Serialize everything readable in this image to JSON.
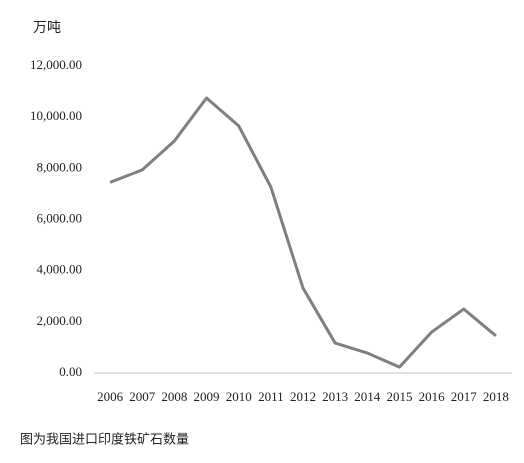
{
  "chart_data": {
    "type": "line",
    "y_unit_label": "万吨",
    "caption": "图为我国进口印度铁矿石数量",
    "categories": [
      "2006",
      "2007",
      "2008",
      "2009",
      "2010",
      "2011",
      "2012",
      "2013",
      "2014",
      "2015",
      "2016",
      "2017",
      "2018"
    ],
    "values": [
      7450,
      7940,
      9070,
      10750,
      9660,
      7270,
      3320,
      1170,
      780,
      230,
      1600,
      2500,
      1450
    ],
    "color": "#7f7f7f",
    "ylim": [
      0,
      12000
    ],
    "yticks": [
      {
        "value": 0,
        "label": "0.00"
      },
      {
        "value": 2000,
        "label": "2,000.00"
      },
      {
        "value": 4000,
        "label": "4,000.00"
      },
      {
        "value": 6000,
        "label": "6,000.00"
      },
      {
        "value": 8000,
        "label": "8,000.00"
      },
      {
        "value": 10000,
        "label": "10,000.00"
      },
      {
        "value": 12000,
        "label": "12,000.00"
      }
    ],
    "grid": false
  }
}
